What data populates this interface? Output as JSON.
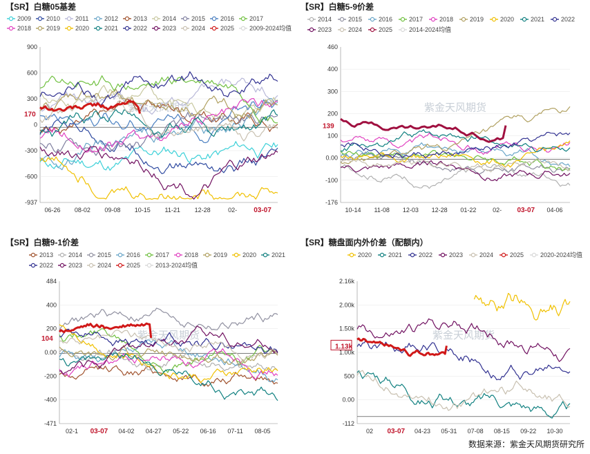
{
  "watermark": "紫金天风期货",
  "source": "数据来源：紫金天风期货研究所",
  "chart_data": [
    {
      "type": "line",
      "title": "【SR】白糖05基差",
      "legend": [
        {
          "name": "2009",
          "color": "#3cd0d8"
        },
        {
          "name": "2010",
          "color": "#2f4aa0"
        },
        {
          "name": "2011",
          "color": "#b8b8d8"
        },
        {
          "name": "2012",
          "color": "#6aa6c8"
        },
        {
          "name": "2013",
          "color": "#a0522d"
        },
        {
          "name": "2014",
          "color": "#c8c8a0"
        },
        {
          "name": "2015",
          "color": "#8080a0"
        },
        {
          "name": "2016",
          "color": "#4a7fc0"
        },
        {
          "name": "2017",
          "color": "#70c040"
        },
        {
          "name": "2018",
          "color": "#e040c0"
        },
        {
          "name": "2019",
          "color": "#b0a060"
        },
        {
          "name": "2020",
          "color": "#f0c000"
        },
        {
          "name": "2021",
          "color": "#108080"
        },
        {
          "name": "2022",
          "color": "#303090"
        },
        {
          "name": "2023",
          "color": "#701060"
        },
        {
          "name": "2024",
          "color": "#c8c0b0"
        },
        {
          "name": "2025",
          "color": "#d01818"
        },
        {
          "name": "2009-2024均值",
          "color": "#d8d8d8"
        }
      ],
      "yticks": [
        "900",
        "600",
        "300",
        "0",
        "-300",
        "-600",
        "-937"
      ],
      "ylim": [
        -937,
        1000
      ],
      "xticks": [
        "06-26",
        "08-02",
        "09-08",
        "10-15",
        "11-21",
        "12-28",
        "02-",
        "03-07"
      ],
      "highlight_x": "03-07",
      "current_label": "170",
      "current_value": 170
    },
    {
      "type": "line",
      "title": "【SR】白糖5-9价差",
      "legend": [
        {
          "name": "2014",
          "color": "#b0b0b0"
        },
        {
          "name": "2015",
          "color": "#9090a0"
        },
        {
          "name": "2016",
          "color": "#6aa6c8"
        },
        {
          "name": "2017",
          "color": "#70c040"
        },
        {
          "name": "2018",
          "color": "#e040c0"
        },
        {
          "name": "2019",
          "color": "#b0a060"
        },
        {
          "name": "2020",
          "color": "#f0c000"
        },
        {
          "name": "2021",
          "color": "#108080"
        },
        {
          "name": "2022",
          "color": "#303090"
        },
        {
          "name": "2023",
          "color": "#701060"
        },
        {
          "name": "2024",
          "color": "#c8c0b0"
        },
        {
          "name": "2025",
          "color": "#a01040"
        },
        {
          "name": "2014-2024均值",
          "color": "#d8d8d8"
        }
      ],
      "yticks": [
        "460",
        "400",
        "300",
        "200",
        "100",
        "0.00",
        "-100",
        "-176"
      ],
      "ylim": [
        -176,
        460
      ],
      "xticks": [
        "10-14",
        "11-08",
        "12-03",
        "12-28",
        "01-22",
        "02-",
        "03-07",
        "04-06"
      ],
      "highlight_x": "03-07",
      "current_label": "139",
      "current_value": 139
    },
    {
      "type": "line",
      "title": "【SR】白糖9-1价差",
      "legend": [
        {
          "name": "2013",
          "color": "#a0522d"
        },
        {
          "name": "2014",
          "color": "#b0b0b0"
        },
        {
          "name": "2015",
          "color": "#9090a0"
        },
        {
          "name": "2016",
          "color": "#6aa6c8"
        },
        {
          "name": "2017",
          "color": "#70c040"
        },
        {
          "name": "2018",
          "color": "#e040c0"
        },
        {
          "name": "2019",
          "color": "#b0a060"
        },
        {
          "name": "2020",
          "color": "#f0c000"
        },
        {
          "name": "2021",
          "color": "#108080"
        },
        {
          "name": "2022",
          "color": "#303090"
        },
        {
          "name": "2023",
          "color": "#701060"
        },
        {
          "name": "2024",
          "color": "#c8c0b0"
        },
        {
          "name": "2025",
          "color": "#d01818"
        },
        {
          "name": "2013-2024均值",
          "color": "#d8d8d8"
        }
      ],
      "yticks": [
        "484",
        "400",
        "200",
        "0.00",
        "-200",
        "-400",
        "-471"
      ],
      "ylim": [
        -471,
        484
      ],
      "xticks": [
        "02-1",
        "03-07",
        "04-02",
        "04-27",
        "05-22",
        "06-16",
        "07-11",
        "08-05"
      ],
      "highlight_x": "03-07",
      "current_label": "104",
      "current_value": 104
    },
    {
      "type": "line",
      "title": "【SR】糖盘面内外价差（配额内）",
      "legend": [
        {
          "name": "2020",
          "color": "#f0c000"
        },
        {
          "name": "2021",
          "color": "#108080"
        },
        {
          "name": "2022",
          "color": "#303090"
        },
        {
          "name": "2023",
          "color": "#701060"
        },
        {
          "name": "2024",
          "color": "#c8c0b0"
        },
        {
          "name": "2025",
          "color": "#d01818"
        },
        {
          "name": "2020-2024均值",
          "color": "#d8d8d8"
        }
      ],
      "yticks": [
        "2.16k",
        "2.00k",
        "1.50k",
        "1.00k",
        "500",
        "0.00",
        "-112"
      ],
      "ylim": [
        -112,
        2160
      ],
      "xticks": [
        "02",
        "03-07",
        "04-23",
        "05-31",
        "07-08",
        "08-15",
        "09-22",
        "10-30"
      ],
      "highlight_x": "03-07",
      "current_label": "1.13k",
      "current_value": 1130
    }
  ]
}
